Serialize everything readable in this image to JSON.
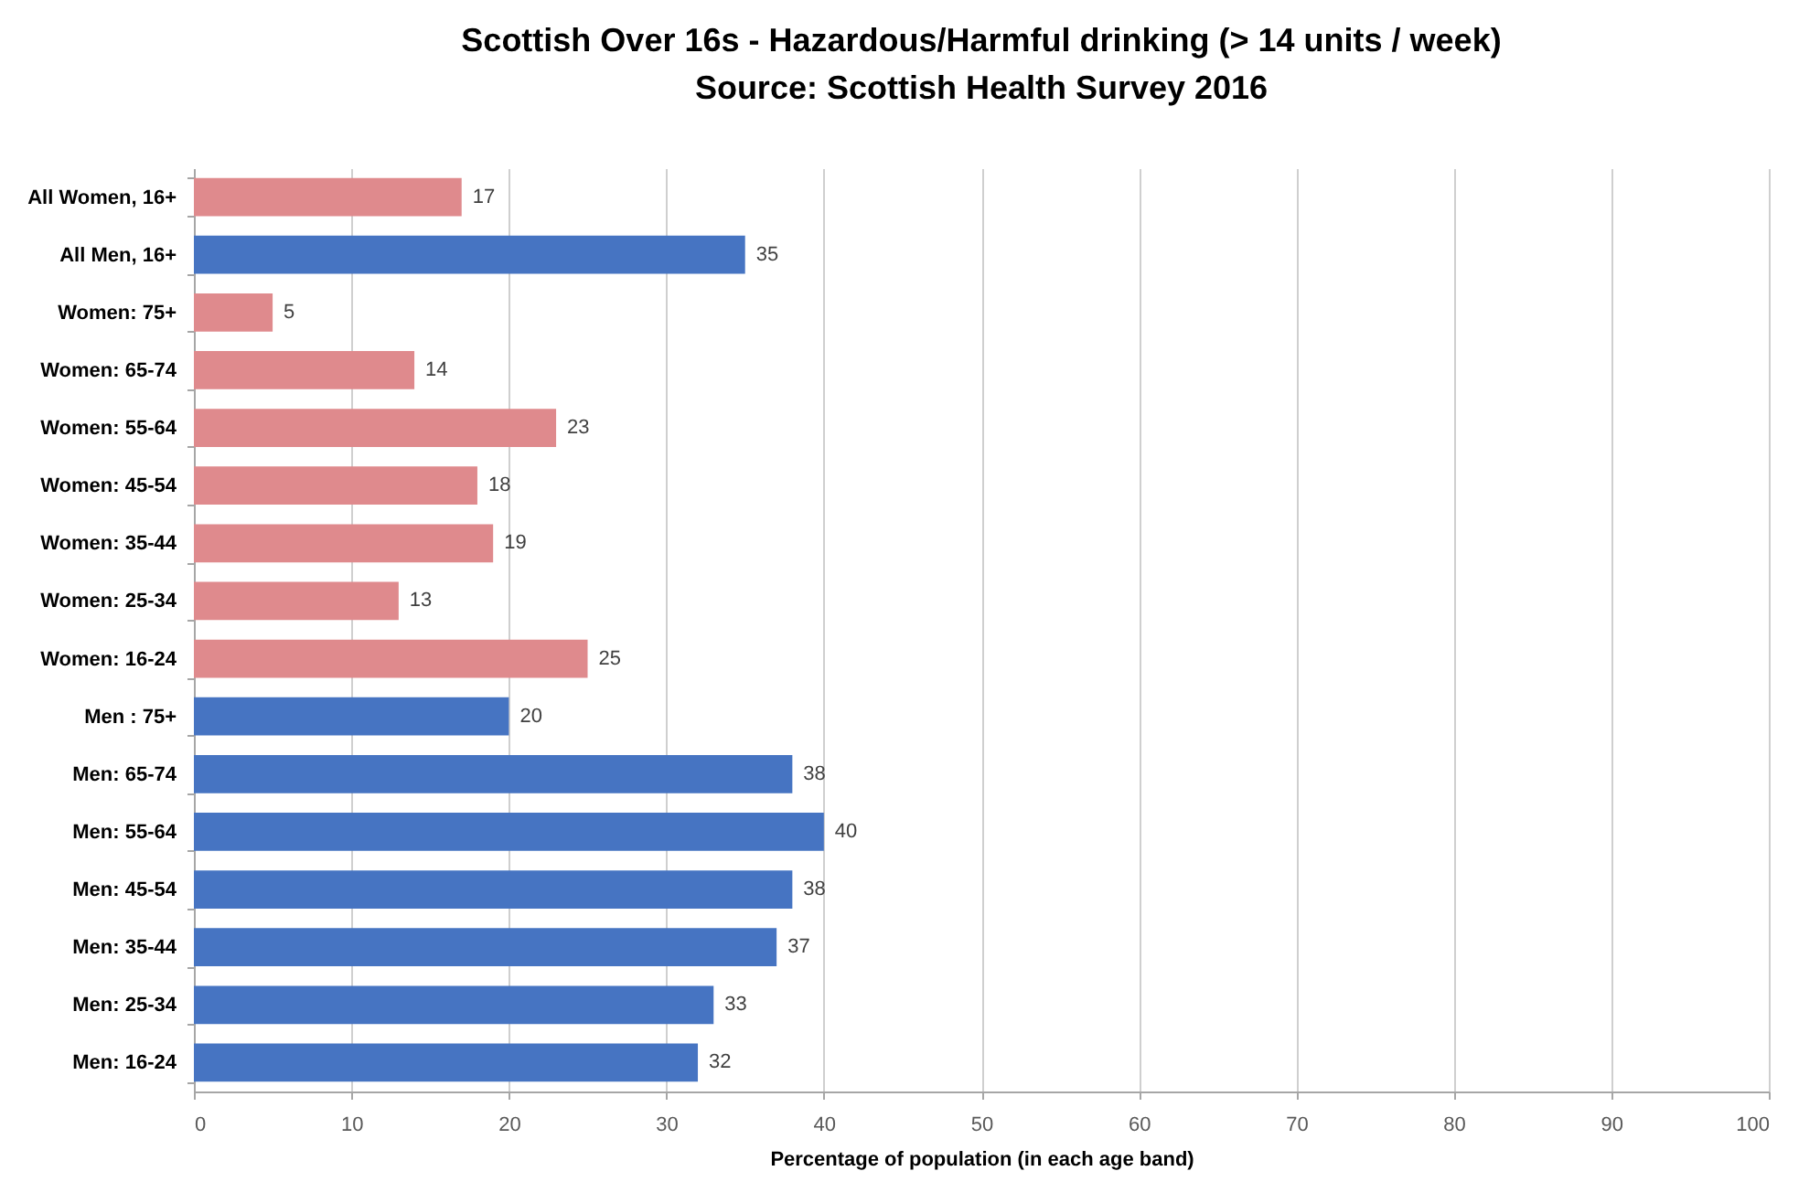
{
  "chart_data": {
    "type": "bar",
    "orientation": "horizontal",
    "title": "Scottish Over 16s - Hazardous/Harmful drinking (> 14 units / week)",
    "subtitle": "Source:  Scottish Health Survey 2016",
    "xlabel": "Percentage of population  (in each age band)",
    "categories": [
      "All Women, 16+",
      "All Men, 16+",
      "Women: 75+",
      "Women: 65-74",
      "Women: 55-64",
      "Women: 45-54",
      "Women: 35-44",
      "Women: 25-34",
      "Women: 16-24",
      "Men : 75+",
      "Men: 65-74",
      "Men: 55-64",
      "Men: 45-54",
      "Men: 35-44",
      "Men: 25-34",
      "Men: 16-24"
    ],
    "values": [
      17,
      35,
      5,
      14,
      23,
      18,
      19,
      13,
      25,
      20,
      38,
      40,
      38,
      37,
      33,
      32
    ],
    "colors": [
      "#df8a8d",
      "#4674c2",
      "#df8a8d",
      "#df8a8d",
      "#df8a8d",
      "#df8a8d",
      "#df8a8d",
      "#df8a8d",
      "#df8a8d",
      "#4674c2",
      "#4674c2",
      "#4674c2",
      "#4674c2",
      "#4674c2",
      "#4674c2",
      "#4674c2"
    ],
    "xlim": [
      0,
      100
    ],
    "xticks": [
      0,
      10,
      20,
      30,
      40,
      50,
      60,
      70,
      80,
      90,
      100
    ],
    "grid": "x",
    "data_labels": true
  }
}
